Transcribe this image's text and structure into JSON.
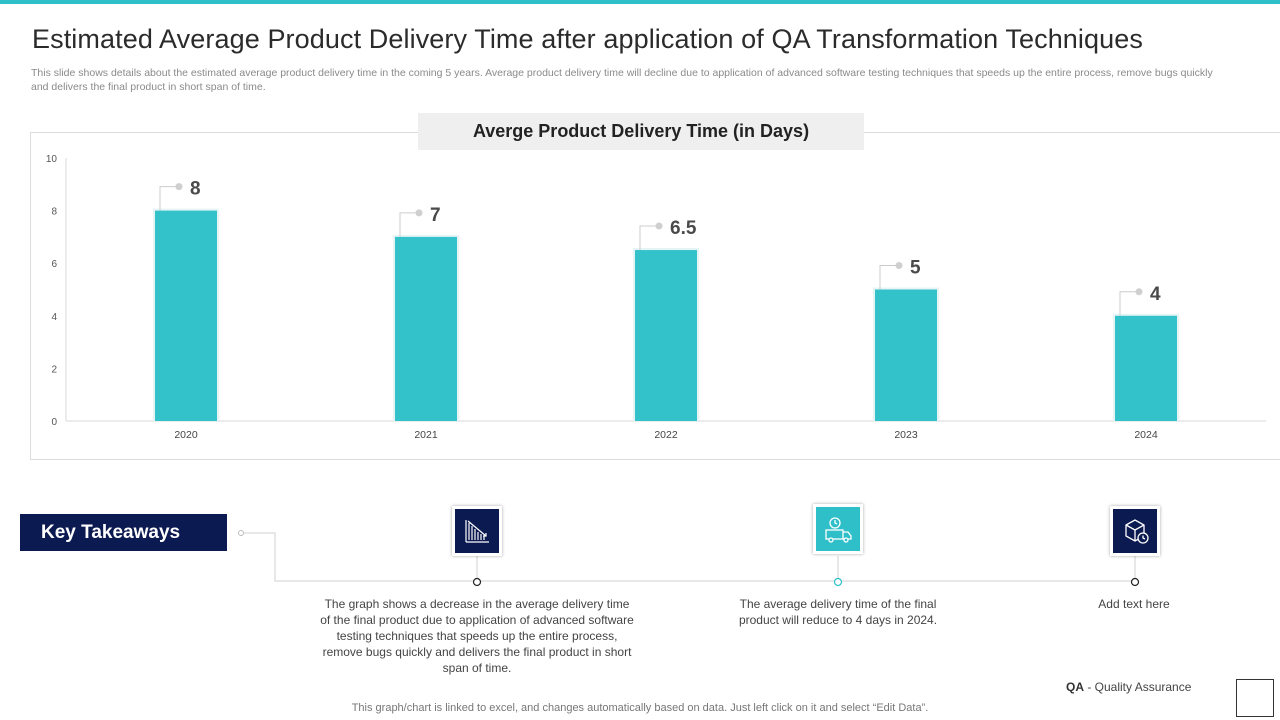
{
  "title": "Estimated Average Product Delivery Time after application of QA Transformation Techniques",
  "subtitle": "This slide shows details about the estimated average product delivery time in the coming 5 years. Average product delivery time will decline due to application of advanced software testing techniques that speeds up the entire process, remove bugs quickly and delivers the final product in short span of time.",
  "colors": {
    "accent": "#2fbfc9",
    "navy": "#0c1a52",
    "bar": "#33c1ca"
  },
  "chart_data": {
    "type": "bar",
    "title": "Averge Product Delivery Time (in Days)",
    "categories": [
      "2020",
      "2021",
      "2022",
      "2023",
      "2024"
    ],
    "values": [
      8,
      7,
      6.5,
      5,
      4
    ],
    "data_labels": [
      "8",
      "7",
      "6.5",
      "5",
      "4"
    ],
    "yticks": [
      0,
      2,
      4,
      6,
      8,
      10
    ],
    "ylim": [
      0,
      10
    ],
    "xlabel": "",
    "ylabel": "",
    "grid": false,
    "legend": "none"
  },
  "key_takeaways": {
    "label": "Key Takeaways",
    "items": [
      {
        "icon": "declining-bar-chart-icon",
        "text": "The graph shows a decrease in the average delivery time of the final product due to application of advanced software testing techniques that speeds up the entire process, remove bugs quickly and delivers the final product in short span of time."
      },
      {
        "icon": "delivery-truck-icon",
        "text": "The average delivery time of the final product will reduce to 4 days in 2024."
      },
      {
        "icon": "package-clock-icon",
        "text": "Add text here"
      }
    ]
  },
  "legend_note": {
    "abbr": "QA",
    "separator": " - ",
    "full": "Quality Assurance"
  },
  "footer": "This graph/chart is linked to excel, and changes automatically based on data. Just left click on it and select “Edit Data”."
}
